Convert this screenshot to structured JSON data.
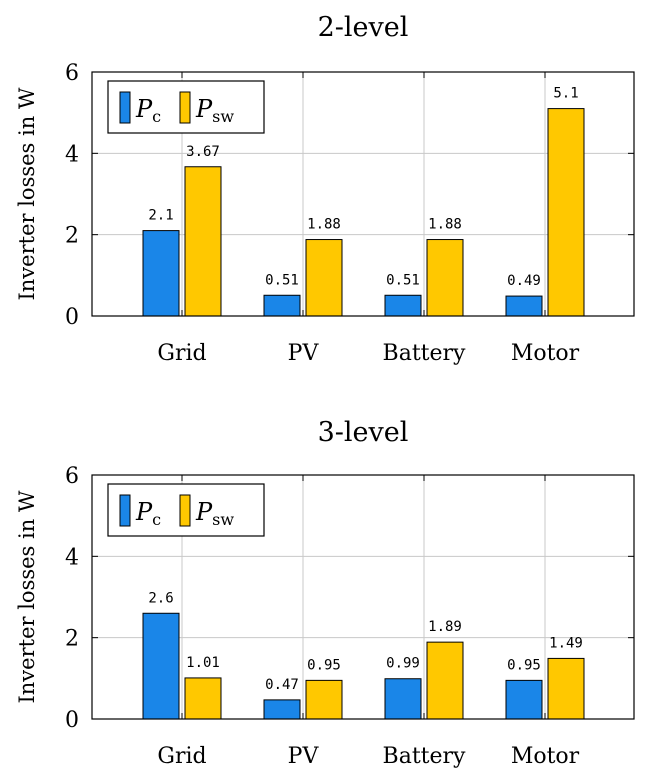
{
  "chart_data": [
    {
      "type": "bar",
      "title": "2-level",
      "ylabel": "Inverter losses in W",
      "xlabel": "",
      "categories": [
        "Grid",
        "PV",
        "Battery",
        "Motor"
      ],
      "ylim": [
        0,
        6
      ],
      "yticks": [
        "0",
        "2",
        "4",
        "6"
      ],
      "grid": true,
      "legend_position": "top-left",
      "series": [
        {
          "name": "P_c",
          "symbol": "P",
          "subscript": "c",
          "color": "#1a86e8",
          "values": [
            2.1,
            0.51,
            0.51,
            0.49
          ],
          "labels": [
            "2.1",
            "0.51",
            "0.51",
            "0.49"
          ]
        },
        {
          "name": "P_sw",
          "symbol": "P",
          "subscript": "sw",
          "color": "#ffc800",
          "values": [
            3.67,
            1.88,
            1.88,
            5.1
          ],
          "labels": [
            "3.67",
            "1.88",
            "1.88",
            "5.1"
          ]
        }
      ]
    },
    {
      "type": "bar",
      "title": "3-level",
      "ylabel": "Inverter losses in W",
      "xlabel": "",
      "categories": [
        "Grid",
        "PV",
        "Battery",
        "Motor"
      ],
      "ylim": [
        0,
        6
      ],
      "yticks": [
        "0",
        "2",
        "4",
        "6"
      ],
      "grid": true,
      "legend_position": "top-left",
      "series": [
        {
          "name": "P_c",
          "symbol": "P",
          "subscript": "c",
          "color": "#1a86e8",
          "values": [
            2.6,
            0.47,
            0.99,
            0.95
          ],
          "labels": [
            "2.6",
            "0.47",
            "0.99",
            "0.95"
          ]
        },
        {
          "name": "P_sw",
          "symbol": "P",
          "subscript": "sw",
          "color": "#ffc800",
          "values": [
            1.01,
            0.95,
            1.89,
            1.49
          ],
          "labels": [
            "1.01",
            "0.95",
            "1.89",
            "1.49"
          ]
        }
      ]
    }
  ]
}
